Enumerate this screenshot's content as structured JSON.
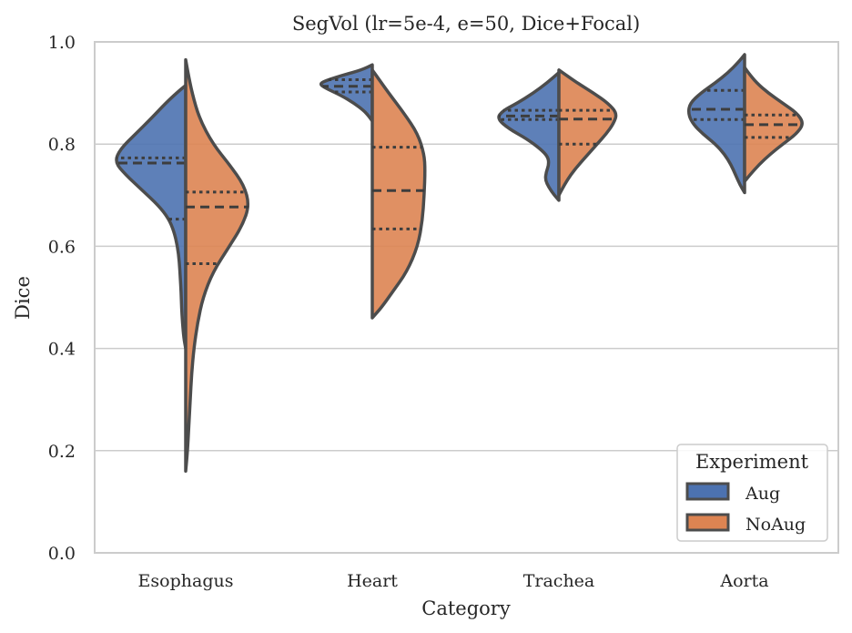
{
  "chart_data": {
    "type": "violin",
    "title": "SegVol (lr=5e-4, e=50, Dice+Focal)",
    "xlabel": "Category",
    "ylabel": "Dice",
    "ylim": [
      0,
      1.0
    ],
    "yticks": [
      0.0,
      0.2,
      0.4,
      0.6,
      0.8,
      1.0
    ],
    "ytick_labels": [
      "0.0",
      "0.2",
      "0.4",
      "0.6",
      "0.8",
      "1.0"
    ],
    "grid": true,
    "split": true,
    "inner": "quartile",
    "categories": [
      "Esophagus",
      "Heart",
      "Trachea",
      "Aorta"
    ],
    "legend": {
      "title": "Experiment",
      "position": "bottom-right"
    },
    "series": [
      {
        "name": "Aug",
        "color": "#4c72b0",
        "side": "left",
        "violins": [
          {
            "category": "Esophagus",
            "min": 0.4,
            "max": 0.915,
            "q1": 0.653,
            "median": 0.763,
            "q3": 0.773,
            "profile": [
              [
                0.4,
                0.0
              ],
              [
                0.42,
                0.02
              ],
              [
                0.45,
                0.035
              ],
              [
                0.48,
                0.045
              ],
              [
                0.51,
                0.05
              ],
              [
                0.54,
                0.06
              ],
              [
                0.57,
                0.07
              ],
              [
                0.6,
                0.09
              ],
              [
                0.63,
                0.13
              ],
              [
                0.655,
                0.19
              ],
              [
                0.68,
                0.3
              ],
              [
                0.71,
                0.48
              ],
              [
                0.74,
                0.66
              ],
              [
                0.765,
                0.78
              ],
              [
                0.79,
                0.72
              ],
              [
                0.82,
                0.55
              ],
              [
                0.85,
                0.38
              ],
              [
                0.88,
                0.22
              ],
              [
                0.9,
                0.1
              ],
              [
                0.915,
                0.0
              ]
            ]
          },
          {
            "category": "Heart",
            "min": 0.845,
            "max": 0.955,
            "q1": 0.902,
            "median": 0.913,
            "q3": 0.926,
            "profile": [
              [
                0.845,
                0.0
              ],
              [
                0.855,
                0.04
              ],
              [
                0.865,
                0.09
              ],
              [
                0.88,
                0.2
              ],
              [
                0.895,
                0.34
              ],
              [
                0.91,
                0.52
              ],
              [
                0.918,
                0.58
              ],
              [
                0.925,
                0.5
              ],
              [
                0.935,
                0.32
              ],
              [
                0.945,
                0.12
              ],
              [
                0.955,
                0.0
              ]
            ]
          },
          {
            "category": "Trachea",
            "min": 0.69,
            "max": 0.94,
            "q1": 0.848,
            "median": 0.855,
            "q3": 0.866,
            "profile": [
              [
                0.69,
                0.0
              ],
              [
                0.7,
                0.05
              ],
              [
                0.715,
                0.11
              ],
              [
                0.73,
                0.15
              ],
              [
                0.745,
                0.14
              ],
              [
                0.76,
                0.11
              ],
              [
                0.775,
                0.12
              ],
              [
                0.79,
                0.2
              ],
              [
                0.81,
                0.35
              ],
              [
                0.83,
                0.55
              ],
              [
                0.85,
                0.68
              ],
              [
                0.865,
                0.62
              ],
              [
                0.88,
                0.46
              ],
              [
                0.9,
                0.28
              ],
              [
                0.92,
                0.13
              ],
              [
                0.94,
                0.0
              ]
            ]
          },
          {
            "category": "Aorta",
            "min": 0.705,
            "max": 0.975,
            "q1": 0.848,
            "median": 0.868,
            "q3": 0.905,
            "profile": [
              [
                0.705,
                0.0
              ],
              [
                0.72,
                0.05
              ],
              [
                0.74,
                0.1
              ],
              [
                0.76,
                0.15
              ],
              [
                0.78,
                0.22
              ],
              [
                0.8,
                0.32
              ],
              [
                0.82,
                0.46
              ],
              [
                0.84,
                0.57
              ],
              [
                0.86,
                0.62
              ],
              [
                0.88,
                0.6
              ],
              [
                0.9,
                0.48
              ],
              [
                0.92,
                0.32
              ],
              [
                0.94,
                0.18
              ],
              [
                0.96,
                0.07
              ],
              [
                0.975,
                0.0
              ]
            ]
          }
        ]
      },
      {
        "name": "NoAug",
        "color": "#dd8452",
        "side": "right",
        "violins": [
          {
            "category": "Esophagus",
            "min": 0.16,
            "max": 0.965,
            "q1": 0.566,
            "median": 0.677,
            "q3": 0.706,
            "profile": [
              [
                0.16,
                0.0
              ],
              [
                0.2,
                0.02
              ],
              [
                0.25,
                0.035
              ],
              [
                0.3,
                0.05
              ],
              [
                0.35,
                0.065
              ],
              [
                0.4,
                0.09
              ],
              [
                0.45,
                0.13
              ],
              [
                0.5,
                0.19
              ],
              [
                0.55,
                0.3
              ],
              [
                0.6,
                0.48
              ],
              [
                0.64,
                0.62
              ],
              [
                0.68,
                0.7
              ],
              [
                0.72,
                0.64
              ],
              [
                0.76,
                0.48
              ],
              [
                0.8,
                0.3
              ],
              [
                0.85,
                0.15
              ],
              [
                0.9,
                0.07
              ],
              [
                0.94,
                0.025
              ],
              [
                0.965,
                0.0
              ]
            ]
          },
          {
            "category": "Heart",
            "min": 0.46,
            "max": 0.945,
            "q1": 0.634,
            "median": 0.709,
            "q3": 0.794,
            "profile": [
              [
                0.46,
                0.0
              ],
              [
                0.48,
                0.1
              ],
              [
                0.51,
                0.22
              ],
              [
                0.55,
                0.38
              ],
              [
                0.6,
                0.5
              ],
              [
                0.65,
                0.55
              ],
              [
                0.7,
                0.57
              ],
              [
                0.75,
                0.58
              ],
              [
                0.78,
                0.57
              ],
              [
                0.82,
                0.5
              ],
              [
                0.86,
                0.35
              ],
              [
                0.9,
                0.18
              ],
              [
                0.93,
                0.06
              ],
              [
                0.945,
                0.0
              ]
            ]
          },
          {
            "category": "Trachea",
            "min": 0.7,
            "max": 0.945,
            "q1": 0.8,
            "median": 0.849,
            "q3": 0.866,
            "profile": [
              [
                0.7,
                0.0
              ],
              [
                0.72,
                0.06
              ],
              [
                0.74,
                0.13
              ],
              [
                0.76,
                0.22
              ],
              [
                0.78,
                0.32
              ],
              [
                0.8,
                0.42
              ],
              [
                0.82,
                0.52
              ],
              [
                0.84,
                0.6
              ],
              [
                0.86,
                0.64
              ],
              [
                0.88,
                0.54
              ],
              [
                0.9,
                0.38
              ],
              [
                0.92,
                0.2
              ],
              [
                0.935,
                0.08
              ],
              [
                0.945,
                0.0
              ]
            ]
          },
          {
            "category": "Aorta",
            "min": 0.727,
            "max": 0.95,
            "q1": 0.813,
            "median": 0.838,
            "q3": 0.857,
            "profile": [
              [
                0.727,
                0.0
              ],
              [
                0.74,
                0.06
              ],
              [
                0.76,
                0.16
              ],
              [
                0.78,
                0.28
              ],
              [
                0.8,
                0.42
              ],
              [
                0.82,
                0.57
              ],
              [
                0.84,
                0.65
              ],
              [
                0.86,
                0.58
              ],
              [
                0.88,
                0.42
              ],
              [
                0.9,
                0.26
              ],
              [
                0.92,
                0.13
              ],
              [
                0.94,
                0.04
              ],
              [
                0.95,
                0.0
              ]
            ]
          }
        ]
      }
    ]
  }
}
